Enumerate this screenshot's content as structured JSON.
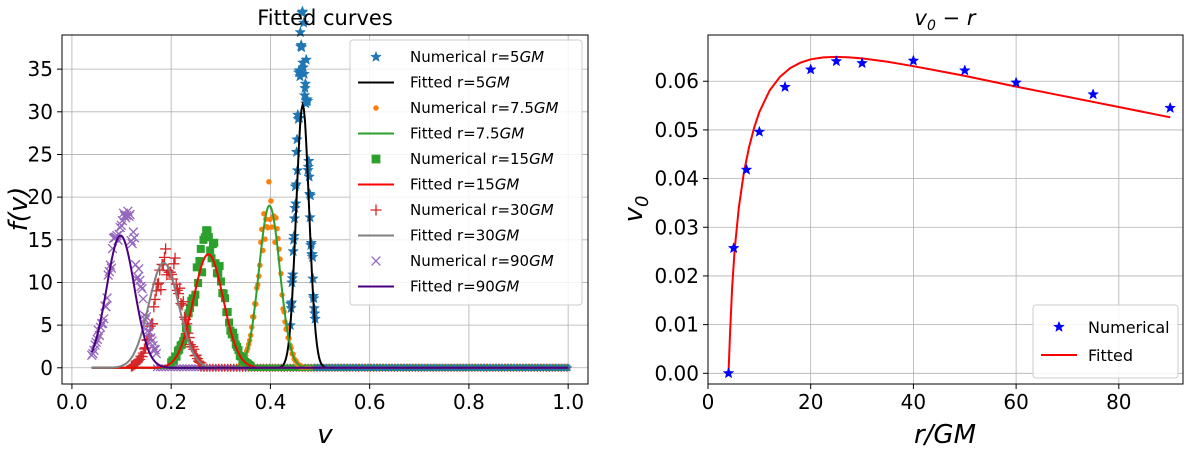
{
  "chart_data": [
    {
      "type": "scatter",
      "title": "Fitted curves",
      "xlabel": "v",
      "ylabel": "f(v)",
      "xlim": [
        -0.02,
        1.04
      ],
      "ylim": [
        -1.9,
        39
      ],
      "xticks": [
        "0.0",
        "0.2",
        "0.4",
        "0.6",
        "0.8",
        "1.0"
      ],
      "yticks": [
        "0",
        "5",
        "10",
        "15",
        "20",
        "25",
        "30",
        "35"
      ],
      "grid": true,
      "legend_position": "top-right",
      "series": [
        {
          "name": "Numerical r=5GM",
          "marker": "star",
          "color": "#1f77b4",
          "peak_v": 0.465,
          "sigma": 0.013,
          "peak_f": 37.2,
          "v_range": [
            0.44,
            0.49
          ]
        },
        {
          "name": "Fitted r=5GM",
          "kind": "line",
          "color": "#000000",
          "mu": 0.465,
          "sigma": 0.013,
          "amp": 30.8
        },
        {
          "name": "Numerical r=7.5GM",
          "marker": "circle",
          "color": "#ff7f0e",
          "peak_v": 0.398,
          "sigma": 0.021,
          "peak_f": 19.0,
          "v_range": [
            0.34,
            0.46
          ]
        },
        {
          "name": "Fitted r=7.5GM",
          "kind": "line",
          "color": "#2ca02c",
          "mu": 0.398,
          "sigma": 0.021,
          "amp": 19.0
        },
        {
          "name": "Numerical r=15GM",
          "marker": "square",
          "color": "#2ca02c",
          "peak_v": 0.275,
          "sigma": 0.03,
          "peak_f": 14.2,
          "v_range": [
            0.2,
            0.36
          ]
        },
        {
          "name": "Fitted r=15GM",
          "kind": "line",
          "color": "#ff0000",
          "mu": 0.275,
          "sigma": 0.03,
          "amp": 13.3
        },
        {
          "name": "Numerical r=30GM",
          "marker": "plus",
          "color": "#d62728",
          "peak_v": 0.195,
          "sigma": 0.026,
          "peak_f": 12.8,
          "v_range": [
            0.12,
            0.26
          ]
        },
        {
          "name": "Fitted r=30GM",
          "kind": "line",
          "color": "#808080",
          "mu": 0.185,
          "sigma": 0.03,
          "amp": 12.3
        },
        {
          "name": "Numerical r=90GM",
          "marker": "x",
          "color": "#9467bd",
          "peak_v": 0.105,
          "sigma": 0.03,
          "peak_f": 17.0,
          "v_range": [
            0.04,
            0.17
          ]
        },
        {
          "name": "Fitted r=90GM",
          "kind": "line",
          "color": "#4b0082",
          "mu": 0.098,
          "sigma": 0.028,
          "amp": 15.5
        }
      ]
    },
    {
      "type": "scatter",
      "title": "v0 − r",
      "xlabel": "r/GM",
      "ylabel": "v0",
      "xlim": [
        0,
        92.5
      ],
      "ylim": [
        -0.0022,
        0.0695
      ],
      "xticks": [
        "0",
        "20",
        "40",
        "60",
        "80"
      ],
      "yticks": [
        "0.00",
        "0.01",
        "0.02",
        "0.03",
        "0.04",
        "0.05",
        "0.06"
      ],
      "grid": true,
      "legend_position": "bottom-right",
      "series": [
        {
          "name": "Numerical",
          "marker": "star",
          "color": "#0000ff",
          "x": [
            4,
            5,
            7.5,
            10,
            15,
            20,
            25,
            30,
            40,
            50,
            60,
            75,
            90
          ],
          "y": [
            0.0,
            0.0257,
            0.0418,
            0.0496,
            0.0588,
            0.0624,
            0.0641,
            0.0637,
            0.0642,
            0.0622,
            0.0597,
            0.0573,
            0.0545
          ]
        },
        {
          "name": "Fitted",
          "kind": "line",
          "color": "#ff0000",
          "x": [
            4,
            4.3,
            4.7,
            5.2,
            6,
            7,
            8,
            9,
            10,
            12,
            14,
            16,
            18,
            20,
            22.5,
            25,
            27.5,
            30,
            35,
            40,
            45,
            50,
            60,
            70,
            80,
            90
          ],
          "y": [
            0.0,
            0.0085,
            0.0175,
            0.0255,
            0.034,
            0.0413,
            0.0465,
            0.0505,
            0.0537,
            0.0581,
            0.0609,
            0.0627,
            0.0638,
            0.0645,
            0.0649,
            0.065,
            0.0649,
            0.0647,
            0.064,
            0.0631,
            0.0621,
            0.0611,
            0.0589,
            0.0568,
            0.0547,
            0.0526
          ]
        }
      ]
    }
  ],
  "legend_left": [
    {
      "label": "Numerical r=5",
      "unit": "GM"
    },
    {
      "label": "Fitted r=5",
      "unit": "GM"
    },
    {
      "label": "Numerical r=7.5",
      "unit": "GM"
    },
    {
      "label": "Fitted r=7.5",
      "unit": "GM"
    },
    {
      "label": "Numerical r=15",
      "unit": "GM"
    },
    {
      "label": "Fitted r=15",
      "unit": "GM"
    },
    {
      "label": "Numerical r=30",
      "unit": "GM"
    },
    {
      "label": "Fitted r=30",
      "unit": "GM"
    },
    {
      "label": "Numerical r=90",
      "unit": "GM"
    },
    {
      "label": "Fitted r=90",
      "unit": "GM"
    }
  ],
  "legend_right": [
    "Numerical",
    "Fitted"
  ],
  "left_title": "Fitted curves",
  "left_xlabel": "v",
  "left_ylabel": "f(v)",
  "right_title_main": "v",
  "right_title_sub": "0",
  "right_title_rest": " − r",
  "right_xlabel": "r/GM",
  "right_ylabel_main": "v",
  "right_ylabel_sub": "0"
}
